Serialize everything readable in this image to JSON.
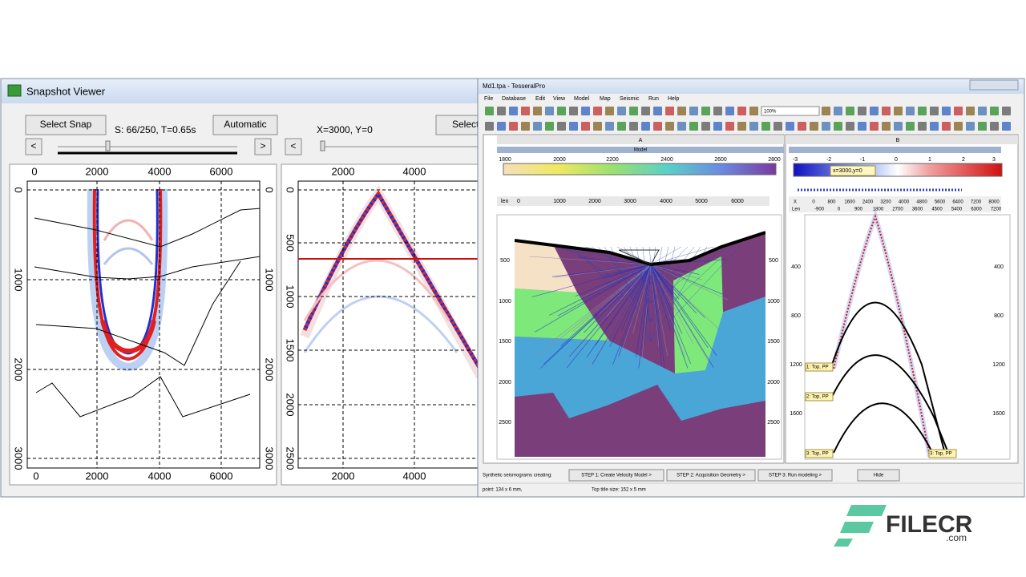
{
  "snapshot_viewer": {
    "title": "Snapshot Viewer",
    "buttons": {
      "select_snap": "Select Snap",
      "automatic": "Automatic",
      "select": "Select"
    },
    "status": "S: 66/250, T=0.65s",
    "position": "X=3000, Y=0",
    "nav": {
      "prev": "<",
      "next": ">",
      "prev_right": "<"
    },
    "left_plot": {
      "x_ticks": [
        "0",
        "2000",
        "4000",
        "6000"
      ],
      "y_ticks": [
        "0",
        "1000",
        "2000",
        "3000"
      ]
    },
    "right_plot": {
      "x_ticks": [
        "2000",
        "4000"
      ],
      "y_ticks": [
        "0",
        "500",
        "1000",
        "1500",
        "2000",
        "2500"
      ]
    }
  },
  "tesseral": {
    "title": "Md1.tpa - TesseralPro",
    "menu": [
      "File",
      "Database",
      "Edit",
      "View",
      "Model",
      "Map",
      "Seismic",
      "Run",
      "Help"
    ],
    "zoom": "100%",
    "pane_a": {
      "header": "A",
      "title": "Model",
      "colorbar_ticks": [
        "1800",
        "2000",
        "2200",
        "2400",
        "2600",
        "2800"
      ],
      "len_label": "len",
      "len_ticks": [
        "0",
        "1000",
        "2000",
        "3000",
        "4000",
        "5000",
        "6000"
      ],
      "depth_ticks": [
        "500",
        "1000",
        "1500",
        "2000",
        "2500"
      ]
    },
    "pane_b": {
      "header": "B",
      "colorbar_ticks": [
        "-3",
        "-2",
        "-1",
        "0",
        "1",
        "2",
        "3"
      ],
      "cursor": "x=3000,y=0",
      "x_label": "X",
      "x_ticks": [
        "0",
        "800",
        "1600",
        "2400",
        "3200",
        "4000",
        "4800",
        "5600",
        "6400",
        "7200",
        "8000"
      ],
      "len_label": "Len",
      "len_ticks": [
        "-900",
        "0",
        "900",
        "1800",
        "2700",
        "3600",
        "4500",
        "5400",
        "6300",
        "7200"
      ],
      "depth_ticks": [
        "400",
        "800",
        "1200",
        "1600"
      ],
      "horizon_labels": [
        "1: Top, PP",
        "2: Top, PP",
        "3: Top, PP",
        "3: Top, PP"
      ]
    },
    "steps": {
      "caption": "Synthetic seismograms creating:",
      "step1": "STEP 1: Create Velocity Model >",
      "step2": "STEP 2: Acquisition Geometry >",
      "step3": "STEP 3: Run modeling >",
      "hide": "Hide"
    },
    "status": {
      "point": "point: 134 x 6 mm,",
      "title_size": "Top title size: 152 x 5 mm"
    }
  },
  "watermark": {
    "brand": "FILECR",
    "suffix": ".com"
  }
}
